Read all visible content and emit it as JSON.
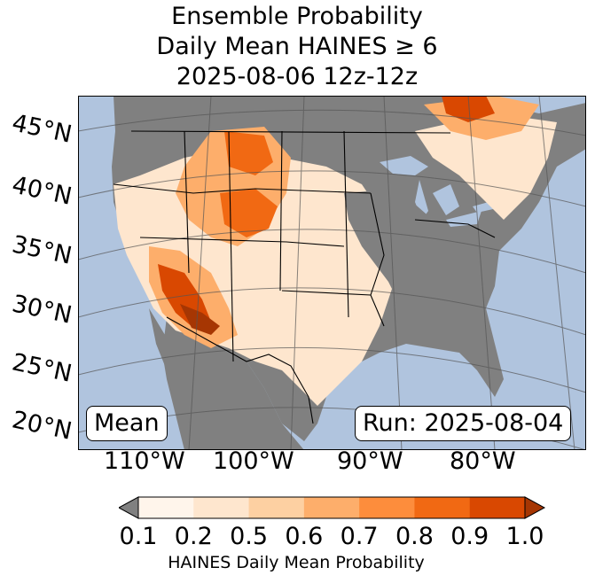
{
  "title": {
    "line1": "Ensemble Probability",
    "line2": "Daily Mean HAINES ≥ 6",
    "line3": "2025-08-06 12z-12z"
  },
  "map": {
    "lat_labels": [
      "45°N",
      "40°N",
      "35°N",
      "30°N",
      "25°N",
      "20°N"
    ],
    "lon_labels": [
      "110°W",
      "100°W",
      "90°W",
      "80°W"
    ],
    "mean_label": "Mean",
    "run_label": "Run: 2025-08-04",
    "ocean_color": "#b0c4de",
    "land_missing_color": "#808080"
  },
  "colorbar": {
    "ticks": [
      "0.1",
      "0.2",
      "0.5",
      "0.6",
      "0.7",
      "0.8",
      "0.9",
      "1.0"
    ],
    "label": "HAINES Daily Mean Probability",
    "colors": [
      "#fff5eb",
      "#fee6ce",
      "#fdd0a2",
      "#fdae6b",
      "#fd8d3c",
      "#f16913",
      "#d94801",
      "#a63603"
    ],
    "under_color": "#808080"
  }
}
